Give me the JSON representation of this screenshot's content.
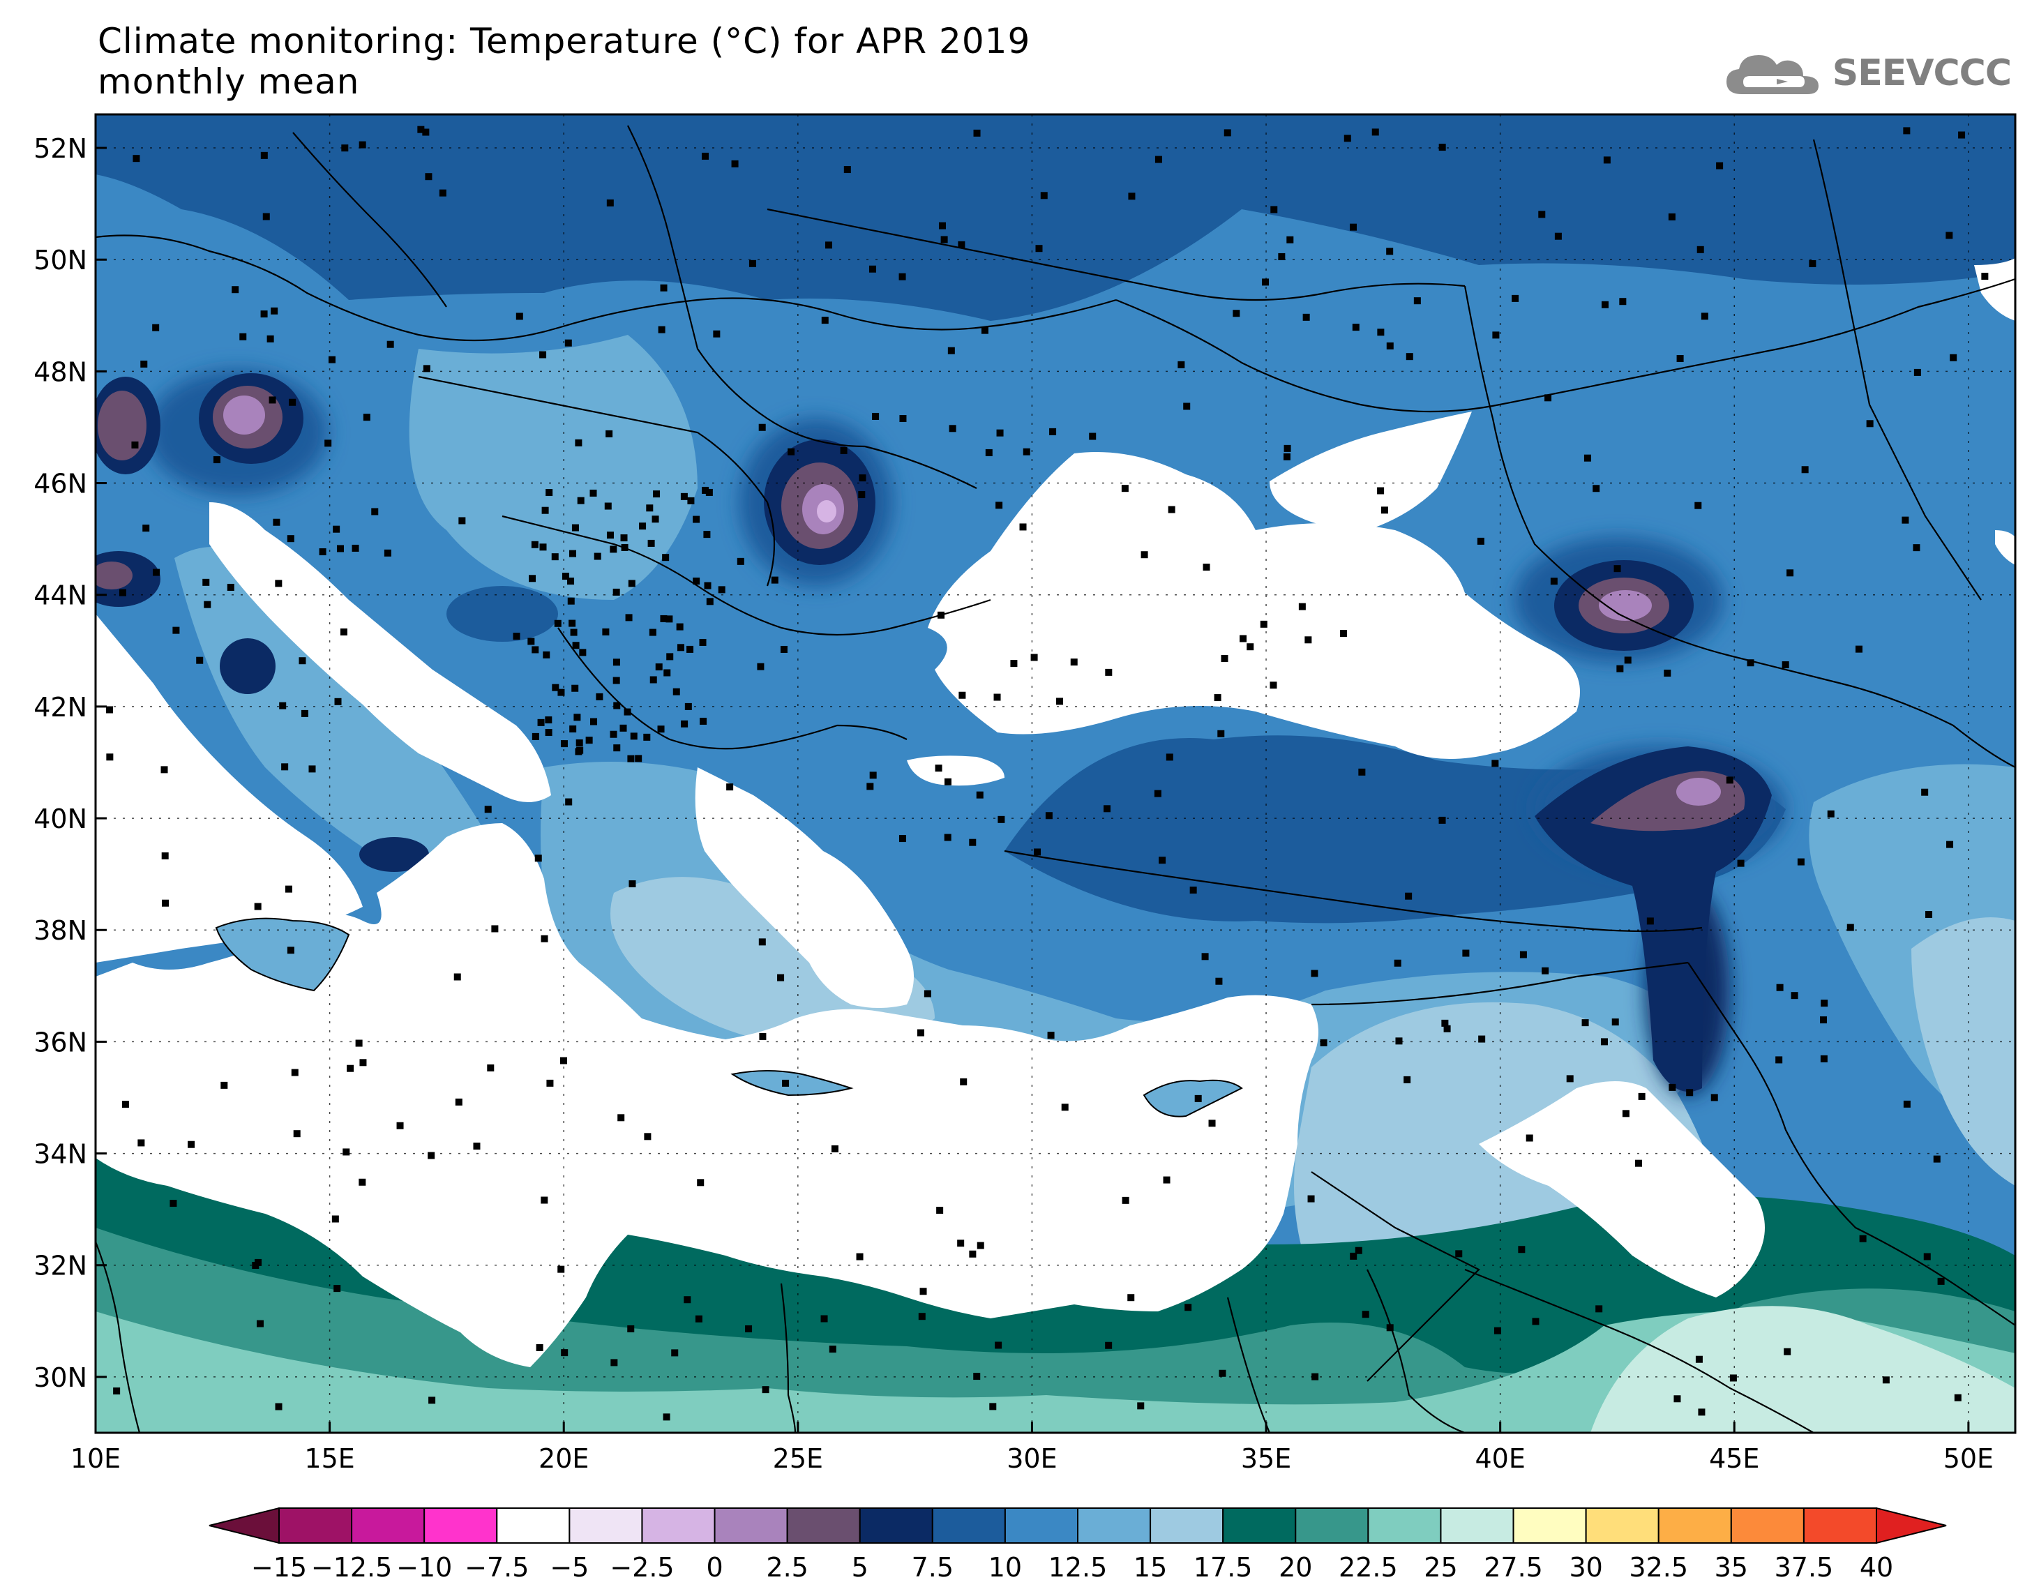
{
  "title": {
    "line1": "Climate monitoring: Temperature (°C) for APR 2019",
    "line2": "monthly mean"
  },
  "logo": {
    "text": "SEEVCCC",
    "icon": "cloud-icon"
  },
  "map": {
    "lon_range": [
      10,
      51
    ],
    "lat_range": [
      29,
      52.6
    ],
    "lon_ticks": [
      "10E",
      "15E",
      "20E",
      "25E",
      "30E",
      "35E",
      "40E",
      "45E",
      "50E"
    ],
    "lat_ticks": [
      "30N",
      "32N",
      "34N",
      "36N",
      "38N",
      "40N",
      "42N",
      "44N",
      "46N",
      "48N",
      "50N",
      "52N"
    ],
    "grid": true
  },
  "colorbar": {
    "labels": [
      "−15",
      "−12.5",
      "−10",
      "−7.5",
      "−5",
      "−2.5",
      "0",
      "2.5",
      "5",
      "7.5",
      "10",
      "12.5",
      "15",
      "17.5",
      "20",
      "22.5",
      "25",
      "27.5",
      "30",
      "32.5",
      "35",
      "37.5",
      "40"
    ],
    "low_color": "#6b0f3a",
    "high_color": "#e02020",
    "colors": [
      "#9e1266",
      "#c8199c",
      "#ff33cc",
      "#ffffff",
      "#efe4f5",
      "#d6b4e4",
      "#a983bc",
      "#6a4f6f",
      "#0b2a64",
      "#1c5c9c",
      "#3b88c4",
      "#6aaed6",
      "#9ecae1",
      "#006a5f",
      "#37978b",
      "#7fcdbf",
      "#c7ebe2",
      "#fffdc0",
      "#ffde7a",
      "#fdae46",
      "#fc8a3a",
      "#f34a2a"
    ]
  },
  "palette": {
    "t10": "#1c5c9c",
    "t12": "#3b88c4",
    "t15": "#6aaed6",
    "t17": "#9ecae1",
    "t20": "#006a5f",
    "t22": "#37978b",
    "t25": "#7fcdbf",
    "t27": "#c7ebe2",
    "t7": "#0b2a64",
    "t5": "#6a4f6f",
    "t2": "#a983bc",
    "t0": "#d6b4e4"
  }
}
